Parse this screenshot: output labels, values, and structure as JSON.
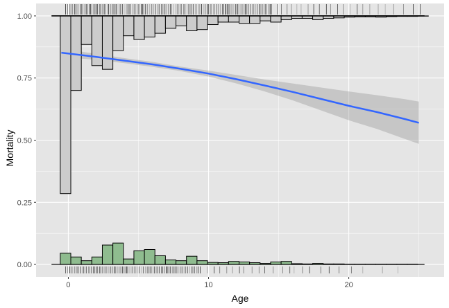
{
  "chart_data": {
    "type": "bar",
    "xlabel": "Age",
    "ylabel": "Mortality",
    "xlim": [
      -2.3,
      26.8
    ],
    "ylim": [
      -0.05,
      1.05
    ],
    "x_ticks": [
      0,
      10,
      20
    ],
    "x_tick_labels": [
      "0",
      "10",
      "20"
    ],
    "y_ticks": [
      0,
      0.25,
      0.5,
      0.75,
      1
    ],
    "y_tick_labels": [
      "0.00",
      "0.25",
      "0.50",
      "0.75",
      "1.00"
    ],
    "grid": true,
    "bin_width": 0.75,
    "top_histogram": {
      "baseline": 1,
      "bin_centers": [
        -0.2,
        0.55,
        1.3,
        2.05,
        2.8,
        3.55,
        4.3,
        5.05,
        5.8,
        6.55,
        7.3,
        8.05,
        8.8,
        9.55,
        10.3,
        11.05,
        11.8,
        12.55,
        13.3,
        14.05,
        14.8,
        15.55,
        16.3,
        17.05,
        17.8,
        18.55,
        19.3,
        20.05,
        20.8,
        21.55,
        22.3,
        23.05,
        23.8,
        24.55,
        25.3
      ],
      "values": [
        0.285,
        0.7,
        0.885,
        0.8,
        0.785,
        0.86,
        0.92,
        0.905,
        0.915,
        0.93,
        0.95,
        0.96,
        0.94,
        0.945,
        0.965,
        0.975,
        0.975,
        0.97,
        0.97,
        0.98,
        0.975,
        0.985,
        0.99,
        0.99,
        0.985,
        0.99,
        0.992,
        0.995,
        0.996,
        0.996,
        0.995,
        0.997,
        0.998,
        0.998,
        0.999
      ],
      "fill": "#cccccc",
      "stroke": "#000000"
    },
    "bottom_histogram": {
      "baseline": 0,
      "bin_centers": [
        -0.2,
        0.55,
        1.3,
        2.05,
        2.8,
        3.55,
        4.3,
        5.05,
        5.8,
        6.55,
        7.3,
        8.05,
        8.8,
        9.55,
        10.3,
        11.05,
        11.8,
        12.55,
        13.3,
        14.05,
        14.8,
        15.55,
        16.3,
        17.05,
        17.8,
        18.55,
        19.3,
        20.05,
        20.8,
        21.55,
        22.3,
        23.05,
        23.8,
        24.55,
        25.3
      ],
      "values": [
        0.045,
        0.03,
        0.015,
        0.03,
        0.078,
        0.086,
        0.022,
        0.055,
        0.06,
        0.035,
        0.018,
        0.015,
        0.033,
        0.015,
        0.008,
        0.007,
        0.012,
        0.01,
        0.007,
        0.004,
        0.01,
        0.012,
        0.003,
        0.002,
        0.004,
        0.002,
        0.002,
        0.001,
        0.001,
        0.001,
        0.001,
        0.001,
        0.001,
        0.001,
        0.0
      ],
      "fill": "#8fbc8f",
      "stroke": "#000000"
    },
    "fit_line": {
      "type": "line",
      "x": [
        -0.5,
        2,
        4,
        6,
        8,
        10,
        12,
        14,
        16,
        18,
        20,
        22,
        24,
        25
      ],
      "y": [
        0.852,
        0.835,
        0.82,
        0.805,
        0.787,
        0.768,
        0.745,
        0.72,
        0.694,
        0.666,
        0.638,
        0.613,
        0.585,
        0.57
      ],
      "ci_lower": [
        0.835,
        0.823,
        0.81,
        0.795,
        0.778,
        0.756,
        0.728,
        0.696,
        0.66,
        0.62,
        0.58,
        0.545,
        0.505,
        0.485
      ],
      "ci_upper": [
        0.869,
        0.847,
        0.83,
        0.815,
        0.796,
        0.78,
        0.762,
        0.744,
        0.728,
        0.712,
        0.696,
        0.681,
        0.665,
        0.655
      ],
      "color": "#3366ff",
      "ribbon_color": "#999999"
    },
    "rug_top": {
      "baseline": 1,
      "dense_range": [
        -0.2,
        14.5
      ],
      "sparse_x": [
        14.9,
        15.2,
        15.6,
        15.9,
        16.3,
        16.6,
        17.1,
        17.5,
        17.9,
        18.4,
        18.7,
        19.2,
        19.6,
        20.1,
        20.6,
        21.0,
        21.5,
        22.1,
        22.6,
        23.2,
        23.9,
        24.6,
        25.1
      ]
    },
    "rug_bottom": {
      "baseline": 0,
      "dense_range": [
        -0.2,
        9.5
      ],
      "sparse_x": [
        9.9,
        10.4,
        10.8,
        11.3,
        11.7,
        12.2,
        12.5,
        13.1,
        13.6,
        14.0,
        14.6,
        15.3,
        15.8,
        16.1,
        16.7,
        17.2,
        18.0,
        18.6,
        19.3,
        20.2,
        21.0,
        22.4,
        23.5
      ]
    },
    "colors": {
      "panel_background": "#e5e5e5",
      "grid": "#ffffff",
      "text": "#4d4d4d"
    }
  }
}
